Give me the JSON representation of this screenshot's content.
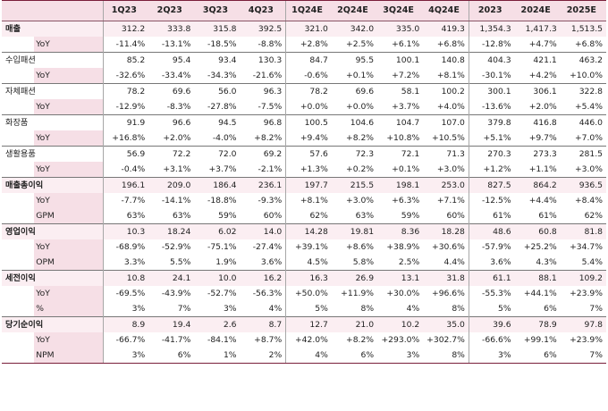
{
  "header": [
    "",
    "",
    "1Q23",
    "2Q23",
    "3Q23",
    "4Q23",
    "1Q24E",
    "2Q24E",
    "3Q24E",
    "4Q24E",
    "2023",
    "2024E",
    "2025E"
  ],
  "groups": [
    {
      "name": "매출",
      "bold": true,
      "hl": true,
      "rows": [
        {
          "label": "",
          "values": [
            "312.2",
            "333.8",
            "315.8",
            "392.5",
            "321.0",
            "342.0",
            "335.0",
            "419.3",
            "1,354.3",
            "1,417.3",
            "1,513.5"
          ]
        },
        {
          "label": "YoY",
          "values": [
            "-11.4%",
            "-13.1%",
            "-18.5%",
            "-8.8%",
            "+2.8%",
            "+2.5%",
            "+6.1%",
            "+6.8%",
            "-12.8%",
            "+4.7%",
            "+6.8%"
          ]
        }
      ]
    },
    {
      "name": "수입패션",
      "bold": false,
      "hl": false,
      "rows": [
        {
          "label": "",
          "values": [
            "85.2",
            "95.4",
            "93.4",
            "130.3",
            "84.7",
            "95.5",
            "100.1",
            "140.8",
            "404.3",
            "421.1",
            "463.2"
          ]
        },
        {
          "label": "YoY",
          "values": [
            "-32.6%",
            "-33.4%",
            "-34.3%",
            "-21.6%",
            "-0.6%",
            "+0.1%",
            "+7.2%",
            "+8.1%",
            "-30.1%",
            "+4.2%",
            "+10.0%"
          ]
        }
      ]
    },
    {
      "name": "자체패션",
      "bold": false,
      "hl": false,
      "rows": [
        {
          "label": "",
          "values": [
            "78.2",
            "69.6",
            "56.0",
            "96.3",
            "78.2",
            "69.6",
            "58.1",
            "100.2",
            "300.1",
            "306.1",
            "322.8"
          ]
        },
        {
          "label": "YoY",
          "values": [
            "-12.9%",
            "-8.3%",
            "-27.8%",
            "-7.5%",
            "+0.0%",
            "+0.0%",
            "+3.7%",
            "+4.0%",
            "-13.6%",
            "+2.0%",
            "+5.4%"
          ]
        }
      ]
    },
    {
      "name": "화장품",
      "bold": false,
      "hl": false,
      "rows": [
        {
          "label": "",
          "values": [
            "91.9",
            "96.6",
            "94.5",
            "96.8",
            "100.5",
            "104.6",
            "104.7",
            "107.0",
            "379.8",
            "416.8",
            "446.0"
          ]
        },
        {
          "label": "YoY",
          "values": [
            "+16.8%",
            "+2.0%",
            "-4.0%",
            "+8.2%",
            "+9.4%",
            "+8.2%",
            "+10.8%",
            "+10.5%",
            "+5.1%",
            "+9.7%",
            "+7.0%"
          ]
        }
      ]
    },
    {
      "name": "생활용품",
      "bold": false,
      "hl": false,
      "rows": [
        {
          "label": "",
          "values": [
            "56.9",
            "72.2",
            "72.0",
            "69.2",
            "57.6",
            "72.3",
            "72.1",
            "71.3",
            "270.3",
            "273.3",
            "281.5"
          ]
        },
        {
          "label": "YoY",
          "values": [
            "-0.4%",
            "+3.1%",
            "+3.7%",
            "-2.1%",
            "+1.3%",
            "+0.2%",
            "+0.1%",
            "+3.0%",
            "+1.2%",
            "+1.1%",
            "+3.0%"
          ]
        }
      ]
    },
    {
      "name": "매출총이익",
      "bold": true,
      "hl": true,
      "rows": [
        {
          "label": "",
          "values": [
            "196.1",
            "209.0",
            "186.4",
            "236.1",
            "197.7",
            "215.5",
            "198.1",
            "253.0",
            "827.5",
            "864.2",
            "936.5"
          ]
        },
        {
          "label": "YoY",
          "values": [
            "-7.7%",
            "-14.1%",
            "-18.8%",
            "-9.3%",
            "+8.1%",
            "+3.0%",
            "+6.3%",
            "+7.1%",
            "-12.5%",
            "+4.4%",
            "+8.4%"
          ]
        },
        {
          "label": "GPM",
          "values": [
            "63%",
            "63%",
            "59%",
            "60%",
            "62%",
            "63%",
            "59%",
            "60%",
            "61%",
            "61%",
            "62%"
          ]
        }
      ]
    },
    {
      "name": "영업이익",
      "bold": true,
      "hl": true,
      "rows": [
        {
          "label": "",
          "values": [
            "10.3",
            "18.24",
            "6.02",
            "14.0",
            "14.28",
            "19.81",
            "8.36",
            "18.28",
            "48.6",
            "60.8",
            "81.8"
          ]
        },
        {
          "label": "YoY",
          "values": [
            "-68.9%",
            "-52.9%",
            "-75.1%",
            "-27.4%",
            "+39.1%",
            "+8.6%",
            "+38.9%",
            "+30.6%",
            "-57.9%",
            "+25.2%",
            "+34.7%"
          ]
        },
        {
          "label": "OPM",
          "values": [
            "3.3%",
            "5.5%",
            "1.9%",
            "3.6%",
            "4.5%",
            "5.8%",
            "2.5%",
            "4.4%",
            "3.6%",
            "4.3%",
            "5.4%"
          ]
        }
      ]
    },
    {
      "name": "세전이익",
      "bold": true,
      "hl": true,
      "rows": [
        {
          "label": "",
          "values": [
            "10.8",
            "24.1",
            "10.0",
            "16.2",
            "16.3",
            "26.9",
            "13.1",
            "31.8",
            "61.1",
            "88.1",
            "109.2"
          ]
        },
        {
          "label": "YoY",
          "values": [
            "-69.5%",
            "-43.9%",
            "-52.7%",
            "-56.3%",
            "+50.0%",
            "+11.9%",
            "+30.0%",
            "+96.6%",
            "-55.3%",
            "+44.1%",
            "+23.9%"
          ]
        },
        {
          "label": "%",
          "values": [
            "3%",
            "7%",
            "3%",
            "4%",
            "5%",
            "8%",
            "4%",
            "8%",
            "5%",
            "6%",
            "7%"
          ]
        }
      ]
    },
    {
      "name": "당기순이익",
      "bold": true,
      "hl": true,
      "rows": [
        {
          "label": "",
          "values": [
            "8.9",
            "19.4",
            "2.6",
            "8.7",
            "12.7",
            "21.0",
            "10.2",
            "35.0",
            "39.6",
            "78.9",
            "97.8"
          ]
        },
        {
          "label": "YoY",
          "values": [
            "-66.7%",
            "-41.7%",
            "-84.1%",
            "+8.7%",
            "+42.0%",
            "+8.2%",
            "+293.0%",
            "+302.7%",
            "-66.6%",
            "+99.1%",
            "+23.9%"
          ]
        },
        {
          "label": "NPM",
          "values": [
            "3%",
            "6%",
            "1%",
            "2%",
            "4%",
            "6%",
            "3%",
            "8%",
            "3%",
            "6%",
            "7%"
          ]
        }
      ]
    }
  ]
}
